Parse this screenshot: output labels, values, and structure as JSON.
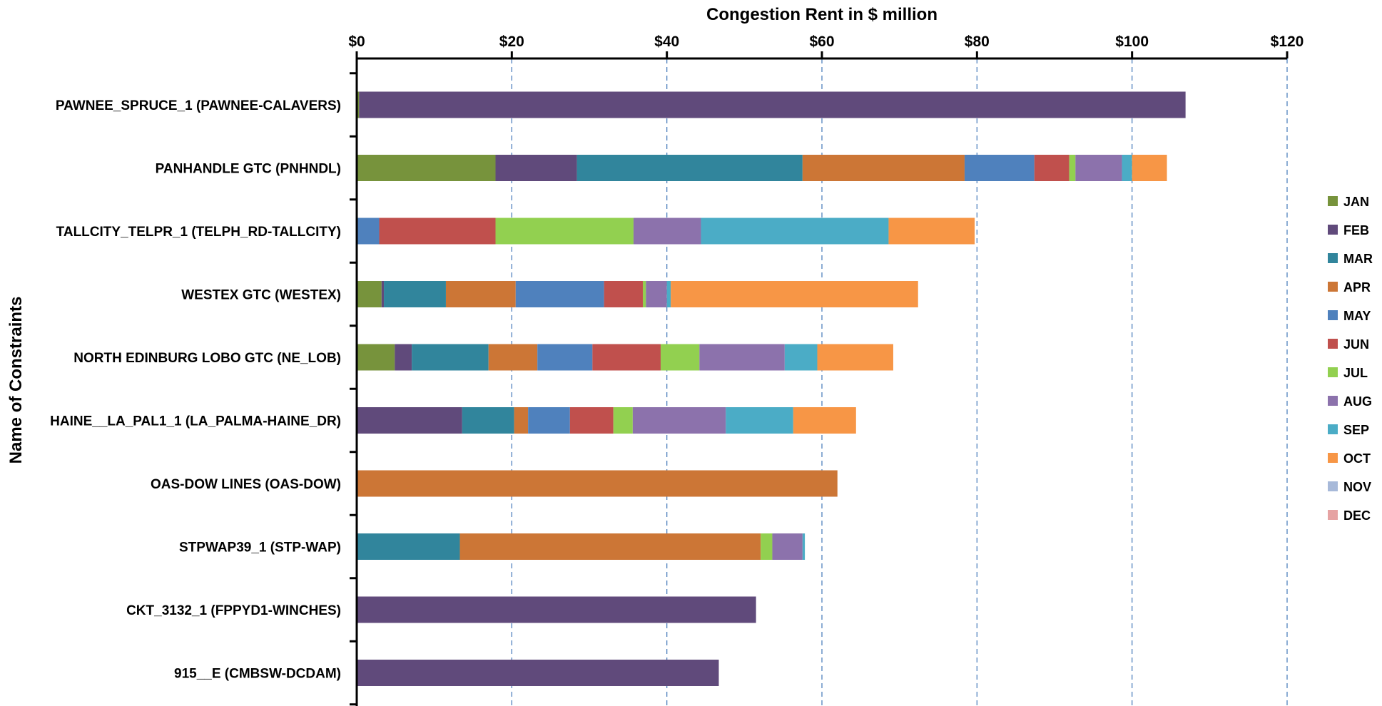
{
  "chart_data": {
    "type": "bar",
    "orientation": "horizontal",
    "stacked": true,
    "xlabel": "Congestion Rent in $ million",
    "ylabel": "Name of Constraints",
    "xlim": [
      0,
      120
    ],
    "x_ticks": [
      0,
      20,
      40,
      60,
      80,
      100,
      120
    ],
    "x_tick_labels": [
      "$0",
      "$20",
      "$40",
      "$60",
      "$80",
      "$100",
      "$120"
    ],
    "x_axis_position": "top",
    "grid": "vertical-dashed",
    "legend_position": "right",
    "categories": [
      "PAWNEE_SPRUCE_1 (PAWNEE-CALAVERS)",
      "PANHANDLE GTC (PNHNDL)",
      "TALLCITY_TELPR_1 (TELPH_RD-TALLCITY)",
      "WESTEX GTC (WESTEX)",
      "NORTH EDINBURG LOBO GTC (NE_LOB)",
      "HAINE__LA_PAL1_1 (LA_PALMA-HAINE_DR)",
      "OAS-DOW LINES (OAS-DOW)",
      "STPWAP39_1 (STP-WAP)",
      "CKT_3132_1 (FPPYD1-WINCHES)",
      "915__E (CMBSW-DCDAM)"
    ],
    "series": [
      {
        "name": "JAN",
        "color": "#77933C",
        "values": [
          0.3,
          17.9,
          0,
          3.2,
          4.9,
          0,
          0,
          0,
          0,
          0
        ]
      },
      {
        "name": "FEB",
        "color": "#604A7B",
        "values": [
          106.6,
          10.5,
          0,
          0.3,
          2.2,
          13.6,
          0,
          0,
          51.5,
          46.7
        ]
      },
      {
        "name": "MAR",
        "color": "#31859C",
        "values": [
          0,
          29.1,
          0,
          8.0,
          9.9,
          6.7,
          0,
          13.3,
          0,
          0
        ]
      },
      {
        "name": "APR",
        "color": "#CC7636",
        "values": [
          0,
          20.9,
          0,
          9.0,
          6.3,
          1.8,
          62.0,
          38.8,
          0,
          0
        ]
      },
      {
        "name": "MAY",
        "color": "#4F81BD",
        "values": [
          0,
          9.0,
          2.9,
          11.4,
          7.1,
          5.4,
          0,
          0,
          0,
          0
        ]
      },
      {
        "name": "JUN",
        "color": "#C0504D",
        "values": [
          0,
          4.5,
          15.0,
          5.0,
          8.8,
          5.6,
          0,
          0,
          0,
          0
        ]
      },
      {
        "name": "JUL",
        "color": "#92D050",
        "values": [
          0,
          0.8,
          17.8,
          0.4,
          5.0,
          2.5,
          0,
          1.5,
          0,
          0
        ]
      },
      {
        "name": "AUG",
        "color": "#8C72AC",
        "values": [
          0,
          6.0,
          8.7,
          2.7,
          11.0,
          12.0,
          0,
          3.9,
          0,
          0
        ]
      },
      {
        "name": "SEP",
        "color": "#4BACC6",
        "values": [
          0,
          1.3,
          24.2,
          0.5,
          4.2,
          8.7,
          0,
          0.3,
          0,
          0
        ]
      },
      {
        "name": "OCT",
        "color": "#F79646",
        "values": [
          0,
          4.5,
          11.1,
          31.9,
          9.8,
          8.1,
          0,
          0,
          0,
          0
        ]
      },
      {
        "name": "NOV",
        "color": "#A7B9D9",
        "values": [
          0,
          0,
          0,
          0,
          0,
          0,
          0,
          0,
          0,
          0
        ]
      },
      {
        "name": "DEC",
        "color": "#E6A3A3",
        "values": [
          0,
          0,
          0,
          0,
          0,
          0,
          0,
          0,
          0,
          0
        ]
      }
    ]
  }
}
